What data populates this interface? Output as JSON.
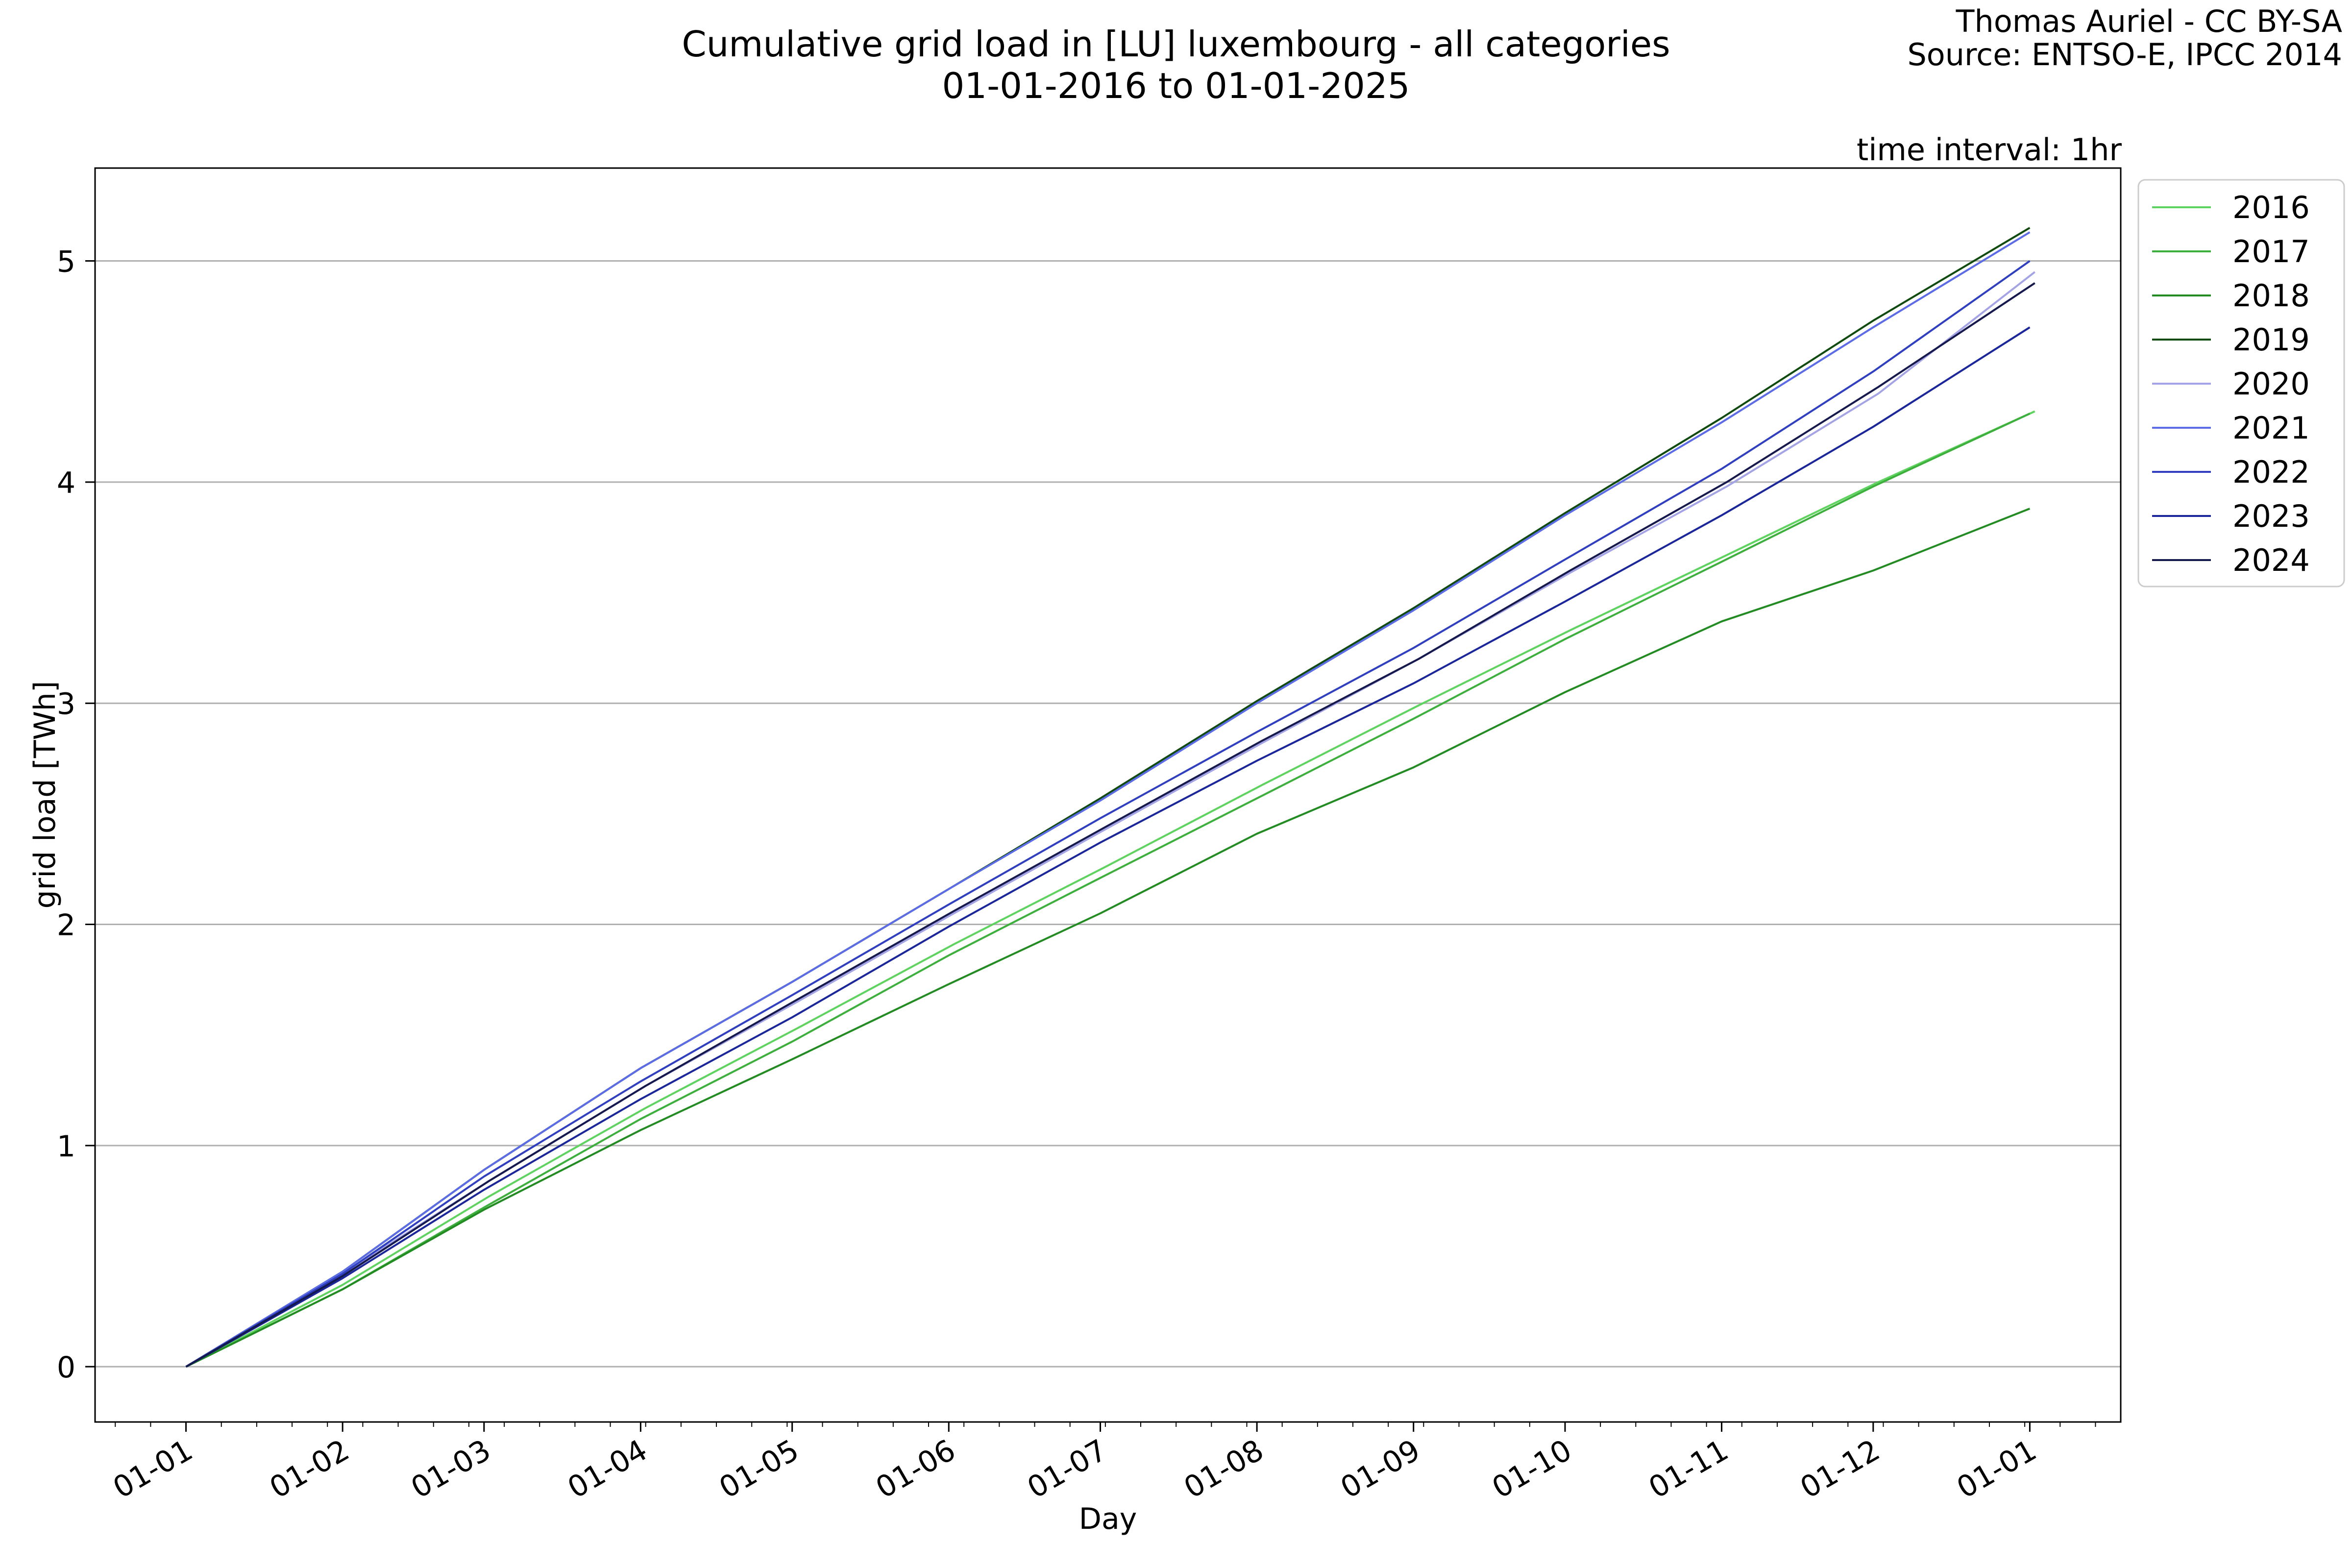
{
  "header": {
    "title_line1": "Cumulative grid load in [LU] luxembourg - all categories",
    "title_line2": "01-01-2016 to 01-01-2025",
    "credit_line1": "Thomas Auriel - CC BY-SA",
    "credit_line2": "Source: ENTSO-E, IPCC 2014",
    "interval_note": "time interval: 1hr"
  },
  "chart_data": {
    "type": "line",
    "xlabel": "Day",
    "ylabel": "grid load [TWh]",
    "x_ticks": [
      "01-01",
      "01-02",
      "01-03",
      "01-04",
      "01-05",
      "01-06",
      "01-07",
      "01-08",
      "01-09",
      "01-10",
      "01-11",
      "01-12",
      "01-01"
    ],
    "y_ticks": [
      0,
      1,
      2,
      3,
      4,
      5
    ],
    "xlim": [
      -18,
      383
    ],
    "ylim": [
      -0.25,
      5.42
    ],
    "grid": "horizontal",
    "legend_position": "outside-top-right",
    "series": [
      {
        "name": "2016",
        "color": "#5fd35f",
        "points": [
          [
            0,
            0
          ],
          [
            31,
            0.37
          ],
          [
            60,
            0.77
          ],
          [
            91,
            1.17
          ],
          [
            121,
            1.53
          ],
          [
            152,
            1.91
          ],
          [
            182,
            2.26
          ],
          [
            213,
            2.63
          ],
          [
            244,
            2.99
          ],
          [
            274,
            3.33
          ],
          [
            305,
            3.67
          ],
          [
            335,
            4.0
          ],
          [
            366,
            4.32
          ]
        ]
      },
      {
        "name": "2017",
        "color": "#3daf3d",
        "points": [
          [
            0,
            0
          ],
          [
            31,
            0.35
          ],
          [
            59,
            0.72
          ],
          [
            90,
            1.12
          ],
          [
            120,
            1.47
          ],
          [
            151,
            1.86
          ],
          [
            181,
            2.21
          ],
          [
            212,
            2.57
          ],
          [
            243,
            2.93
          ],
          [
            273,
            3.29
          ],
          [
            304,
            3.64
          ],
          [
            334,
            3.98
          ],
          [
            365,
            4.31
          ]
        ]
      },
      {
        "name": "2018",
        "color": "#228b22",
        "points": [
          [
            0,
            0
          ],
          [
            31,
            0.35
          ],
          [
            59,
            0.71
          ],
          [
            90,
            1.07
          ],
          [
            120,
            1.39
          ],
          [
            151,
            1.73
          ],
          [
            181,
            2.05
          ],
          [
            212,
            2.41
          ],
          [
            243,
            2.71
          ],
          [
            273,
            3.05
          ],
          [
            304,
            3.37
          ],
          [
            334,
            3.6
          ],
          [
            365,
            3.88
          ]
        ]
      },
      {
        "name": "2019",
        "color": "#0f4a0f",
        "points": [
          [
            0,
            0
          ],
          [
            31,
            0.43
          ],
          [
            59,
            0.89
          ],
          [
            90,
            1.35
          ],
          [
            120,
            1.74
          ],
          [
            151,
            2.16
          ],
          [
            181,
            2.57
          ],
          [
            212,
            3.01
          ],
          [
            243,
            3.43
          ],
          [
            273,
            3.86
          ],
          [
            304,
            4.29
          ],
          [
            334,
            4.73
          ],
          [
            365,
            5.15
          ]
        ]
      },
      {
        "name": "2020",
        "color": "#a3a3e6",
        "points": [
          [
            0,
            0
          ],
          [
            31,
            0.42
          ],
          [
            60,
            0.84
          ],
          [
            91,
            1.27
          ],
          [
            121,
            1.65
          ],
          [
            152,
            2.05
          ],
          [
            182,
            2.43
          ],
          [
            213,
            2.82
          ],
          [
            244,
            3.2
          ],
          [
            274,
            3.59
          ],
          [
            305,
            3.98
          ],
          [
            335,
            4.4
          ],
          [
            366,
            4.95
          ]
        ]
      },
      {
        "name": "2021",
        "color": "#5c6be6",
        "points": [
          [
            0,
            0
          ],
          [
            31,
            0.43
          ],
          [
            59,
            0.89
          ],
          [
            90,
            1.35
          ],
          [
            120,
            1.74
          ],
          [
            151,
            2.16
          ],
          [
            181,
            2.56
          ],
          [
            212,
            3.0
          ],
          [
            243,
            3.42
          ],
          [
            273,
            3.85
          ],
          [
            304,
            4.27
          ],
          [
            334,
            4.7
          ],
          [
            365,
            5.13
          ]
        ]
      },
      {
        "name": "2022",
        "color": "#2f3fbf",
        "points": [
          [
            0,
            0
          ],
          [
            31,
            0.42
          ],
          [
            59,
            0.86
          ],
          [
            90,
            1.29
          ],
          [
            120,
            1.68
          ],
          [
            151,
            2.09
          ],
          [
            181,
            2.48
          ],
          [
            212,
            2.87
          ],
          [
            243,
            3.25
          ],
          [
            273,
            3.65
          ],
          [
            304,
            4.06
          ],
          [
            334,
            4.5
          ],
          [
            365,
            5.0
          ]
        ]
      },
      {
        "name": "2023",
        "color": "#1a2699",
        "points": [
          [
            0,
            0
          ],
          [
            31,
            0.4
          ],
          [
            59,
            0.8
          ],
          [
            90,
            1.21
          ],
          [
            120,
            1.58
          ],
          [
            151,
            1.99
          ],
          [
            181,
            2.37
          ],
          [
            212,
            2.74
          ],
          [
            243,
            3.09
          ],
          [
            273,
            3.46
          ],
          [
            304,
            3.85
          ],
          [
            334,
            4.25
          ],
          [
            365,
            4.7
          ]
        ]
      },
      {
        "name": "2024",
        "color": "#15194d",
        "points": [
          [
            0,
            0
          ],
          [
            31,
            0.41
          ],
          [
            60,
            0.84
          ],
          [
            91,
            1.27
          ],
          [
            121,
            1.66
          ],
          [
            152,
            2.06
          ],
          [
            182,
            2.44
          ],
          [
            213,
            2.83
          ],
          [
            244,
            3.2
          ],
          [
            274,
            3.6
          ],
          [
            305,
            4.0
          ],
          [
            335,
            4.43
          ],
          [
            366,
            4.9
          ]
        ]
      }
    ]
  }
}
